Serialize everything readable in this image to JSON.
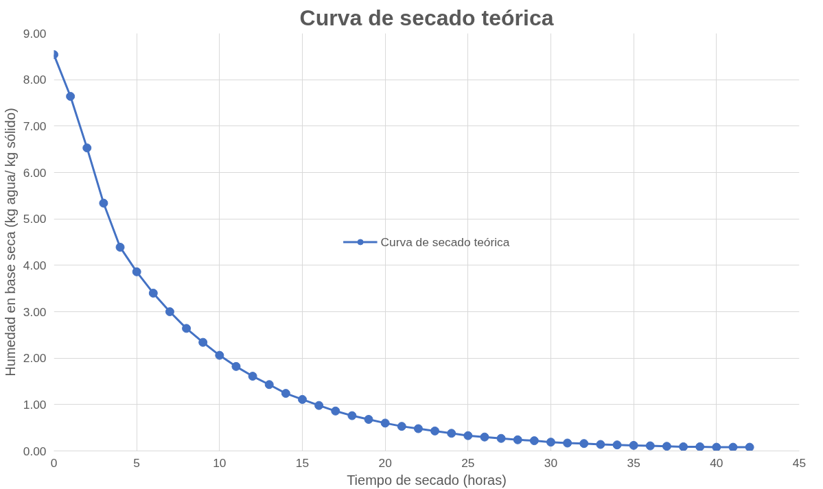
{
  "chart_data": {
    "type": "line",
    "title": "Curva de secado teórica",
    "xlabel": "Tiempo de secado (horas)",
    "ylabel": "Humedad en base seca (kg agua/ kg sólido)",
    "x": [
      0,
      1,
      2,
      3,
      4,
      5,
      6,
      7,
      8,
      9,
      10,
      11,
      12,
      13,
      14,
      15,
      16,
      17,
      18,
      19,
      20,
      21,
      22,
      23,
      24,
      25,
      26,
      27,
      28,
      29,
      30,
      31,
      32,
      33,
      34,
      35,
      36,
      37,
      38,
      39,
      40,
      41,
      42
    ],
    "series": [
      {
        "name": "Curva de secado teórica",
        "color": "#4472c4",
        "values": [
          8.54,
          7.64,
          6.53,
          5.34,
          4.39,
          3.86,
          3.4,
          3.0,
          2.64,
          2.34,
          2.06,
          1.82,
          1.61,
          1.43,
          1.24,
          1.11,
          0.98,
          0.86,
          0.76,
          0.68,
          0.6,
          0.53,
          0.48,
          0.43,
          0.38,
          0.33,
          0.3,
          0.27,
          0.24,
          0.22,
          0.19,
          0.17,
          0.16,
          0.14,
          0.13,
          0.12,
          0.11,
          0.1,
          0.09,
          0.09,
          0.08,
          0.08,
          0.08
        ]
      }
    ],
    "xlim": [
      0,
      45
    ],
    "xticks": [
      0,
      5,
      10,
      15,
      20,
      25,
      30,
      35,
      40,
      45
    ],
    "ylim": [
      0,
      9
    ],
    "yticks": [
      {
        "value": 0,
        "label": "0.00"
      },
      {
        "value": 1,
        "label": "1.00"
      },
      {
        "value": 2,
        "label": "2.00"
      },
      {
        "value": 3,
        "label": "3.00"
      },
      {
        "value": 4,
        "label": "4.00"
      },
      {
        "value": 5,
        "label": "5.00"
      },
      {
        "value": 6,
        "label": "6.00"
      },
      {
        "value": 7,
        "label": "7.00"
      },
      {
        "value": 8,
        "label": "8.00"
      },
      {
        "value": 9,
        "label": "9.00"
      }
    ],
    "grid": true,
    "legend": "center",
    "marker": "circle",
    "line_style": "solid"
  }
}
